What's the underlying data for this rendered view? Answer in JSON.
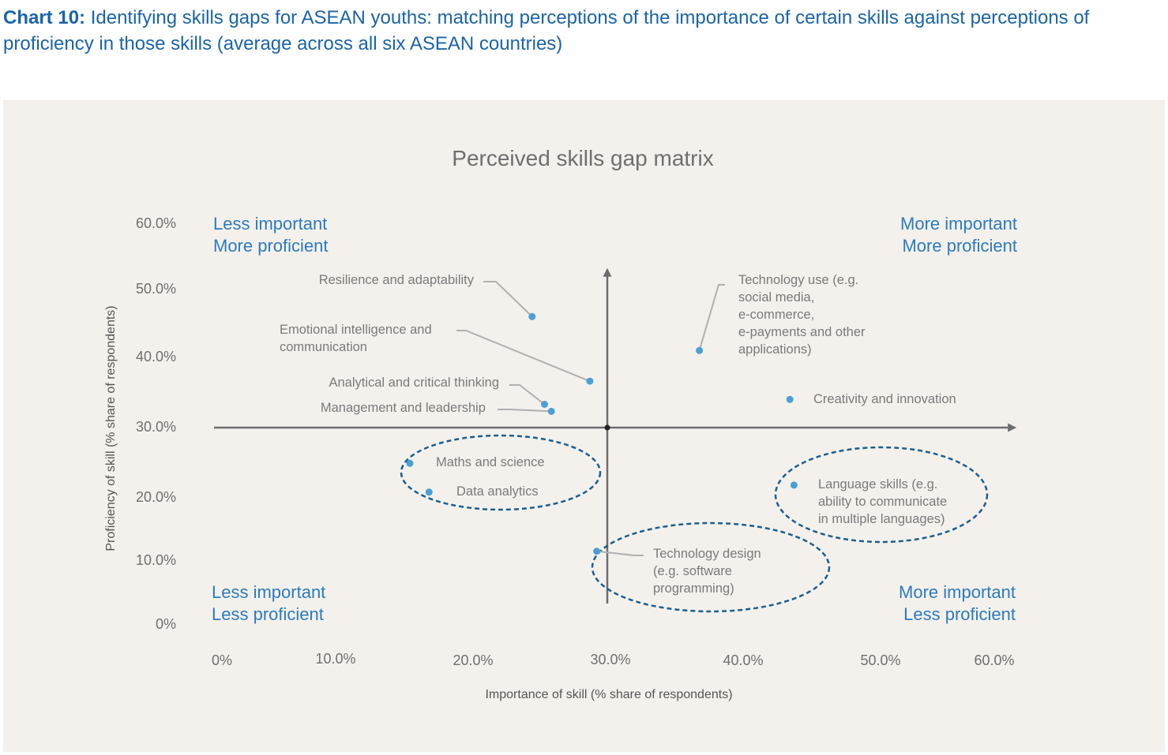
{
  "heading": {
    "prefix": "Chart 10:",
    "text": " Identifying skills gaps for ASEAN youths: matching perceptions of the importance of certain skills against perceptions of proficiency in those skills (average across all six ASEAN countries)"
  },
  "colors": {
    "heading": "#1b64a8",
    "panel": "#f4f1ec",
    "point": "#4b9fd5",
    "quadrant_text": "#2b7bbf",
    "ellipse": "#1a5f93",
    "leader": "#b0b0b0",
    "axis": "#6d6d6d"
  },
  "chart_data": {
    "type": "scatter",
    "title": "Perceived skills gap matrix",
    "xlabel": "Importance of skill (% share of respondents)",
    "ylabel": "Proficiency of skill (% share of respondents)",
    "xlim": [
      0,
      60
    ],
    "ylim": [
      0,
      60
    ],
    "x_ticks": [
      "0%",
      "10.0%",
      "20.0%",
      "30.0%",
      "40.0%",
      "50.0%",
      "60.0%"
    ],
    "y_ticks": [
      "0%",
      "10.0%",
      "20.0%",
      "30.0%",
      "40.0%",
      "50.0%",
      "60.0%"
    ],
    "grid": false,
    "quadrants": {
      "top_left": [
        "Less important",
        "More proficient"
      ],
      "top_right": [
        "More important",
        "More proficient"
      ],
      "bottom_left": [
        "Less important",
        "Less proficient"
      ],
      "bottom_right": [
        "More important",
        "Less proficient"
      ]
    },
    "points": [
      {
        "label": [
          "Resilience and adaptability"
        ],
        "x": 24.3,
        "y": 45.9
      },
      {
        "label": [
          "Emotional intelligence and",
          "communication"
        ],
        "x": 28.5,
        "y": 36.5
      },
      {
        "label": [
          "Analytical and critical thinking"
        ],
        "x": 25.2,
        "y": 33.2
      },
      {
        "label": [
          "Management and leadership"
        ],
        "x": 25.7,
        "y": 32.2
      },
      {
        "label": [
          "Technology use (e.g.",
          "social media,",
          "e-commerce,",
          "e-payments and other",
          "applications)"
        ],
        "x": 36.7,
        "y": 40.9
      },
      {
        "label": [
          "Creativity and innovation"
        ],
        "x": 43.4,
        "y": 33.9
      },
      {
        "label": [
          "Maths and science"
        ],
        "x": 15.4,
        "y": 24.8
      },
      {
        "label": [
          "Data analytics"
        ],
        "x": 16.8,
        "y": 20.7
      },
      {
        "label": [
          "Language skills (e.g.",
          "ability to communicate",
          "in multiple languages)"
        ],
        "x": 43.7,
        "y": 21.7
      },
      {
        "label": [
          "Technology design",
          "(e.g. software",
          "programming)"
        ],
        "x": 29.0,
        "y": 11.3
      }
    ]
  }
}
